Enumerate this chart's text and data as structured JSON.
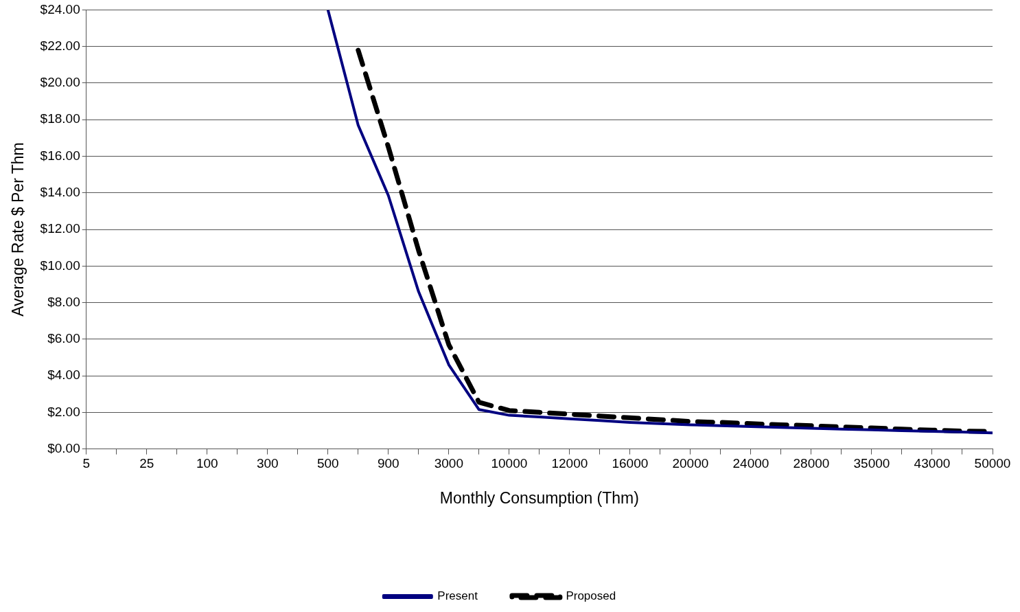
{
  "chart_data": {
    "type": "line",
    "xlabel": "Monthly Consumption (Thm)",
    "ylabel": "Average Rate $ Per Thm",
    "categories": [
      "5",
      null,
      "25",
      null,
      "100",
      null,
      "300",
      null,
      "500",
      null,
      "900",
      null,
      "3000",
      null,
      "10000",
      null,
      "12000",
      null,
      "16000",
      null,
      "20000",
      null,
      "24000",
      null,
      "28000",
      null,
      "35000",
      null,
      "43000",
      null,
      "50000"
    ],
    "series": [
      {
        "name": "Present",
        "color": "#000080",
        "line_style": "solid",
        "values": [
          null,
          null,
          null,
          null,
          null,
          null,
          null,
          null,
          24.0,
          17.7,
          13.85,
          8.6,
          4.6,
          2.15,
          1.84,
          1.75,
          1.65,
          1.55,
          1.45,
          1.38,
          1.32,
          1.27,
          1.22,
          1.18,
          1.13,
          1.08,
          1.05,
          1.0,
          0.96,
          0.92,
          0.88
        ]
      },
      {
        "name": "Proposed",
        "color": "#000000",
        "line_style": "dashed",
        "values": [
          null,
          null,
          null,
          null,
          null,
          null,
          null,
          null,
          null,
          21.8,
          16.5,
          10.85,
          5.7,
          2.55,
          2.1,
          2.0,
          1.9,
          1.8,
          1.7,
          1.6,
          1.5,
          1.45,
          1.38,
          1.32,
          1.27,
          1.2,
          1.15,
          1.08,
          1.03,
          0.98,
          0.95
        ]
      }
    ],
    "ylim": [
      0,
      24
    ],
    "yticks": [
      {
        "value": 0,
        "label": "$0.00"
      },
      {
        "value": 2,
        "label": "$2.00"
      },
      {
        "value": 4,
        "label": "$4.00"
      },
      {
        "value": 6,
        "label": "$6.00"
      },
      {
        "value": 8,
        "label": "$8.00"
      },
      {
        "value": 10,
        "label": "$10.00"
      },
      {
        "value": 12,
        "label": "$12.00"
      },
      {
        "value": 14,
        "label": "$14.00"
      },
      {
        "value": 16,
        "label": "$16.00"
      },
      {
        "value": 18,
        "label": "$18.00"
      },
      {
        "value": 20,
        "label": "$20.00"
      },
      {
        "value": 22,
        "label": "$22.00"
      },
      {
        "value": 24,
        "label": "$24.00"
      }
    ],
    "grid": "y",
    "legend": "bottom",
    "marker": "none"
  }
}
